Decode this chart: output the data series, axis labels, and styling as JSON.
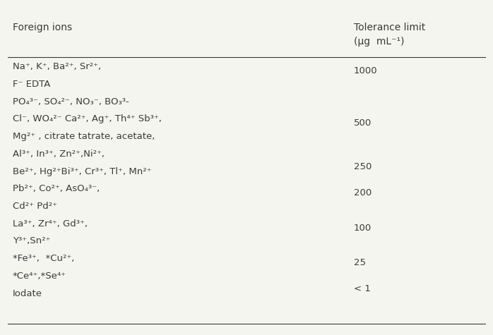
{
  "title_col1": "Foreign ions",
  "title_col2": "Tolerance limit\n(μg  mL⁻¹)",
  "background_color": "#f5f5f0",
  "text_color": "#3a3a3a",
  "rows": [
    {
      "ions_lines": [
        "Na⁺, K⁺, Ba²⁺, Sr²⁺,",
        "F⁻ EDTA"
      ],
      "tolerance": "1000"
    },
    {
      "ions_lines": [
        "PO₄³⁻, SO₄²⁻, NO₃⁻, BO₃³-",
        "Cl⁻, WO₄²⁻ Ca²⁺, Ag⁺, Th⁴⁺ Sb³⁺,",
        "Mg²⁺ , citrate tatrate, acetate,",
        "Al³⁺, In³⁺, Zn²⁺,Ni²⁺,"
      ],
      "tolerance": "500"
    },
    {
      "ions_lines": [
        "Be²⁺, Hg²⁺Bi³⁺, Cr³⁺, Tl⁺, Mn²⁺"
      ],
      "tolerance": "250"
    },
    {
      "ions_lines": [
        "Pb²⁺, Co²⁺, AsO₄³⁻,",
        "Cd²⁺ Pd²⁺"
      ],
      "tolerance": "200"
    },
    {
      "ions_lines": [
        "La³⁺, Zr⁴⁺, Gd³⁺,",
        "Y³⁺,Sn²⁺"
      ],
      "tolerance": "100"
    },
    {
      "ions_lines": [
        "*Fe³⁺,  *Cu²⁺,",
        "*Ce⁴⁺,*Se⁴⁺"
      ],
      "tolerance": "25"
    },
    {
      "ions_lines": [
        "Iodate"
      ],
      "tolerance": "< 1"
    }
  ]
}
